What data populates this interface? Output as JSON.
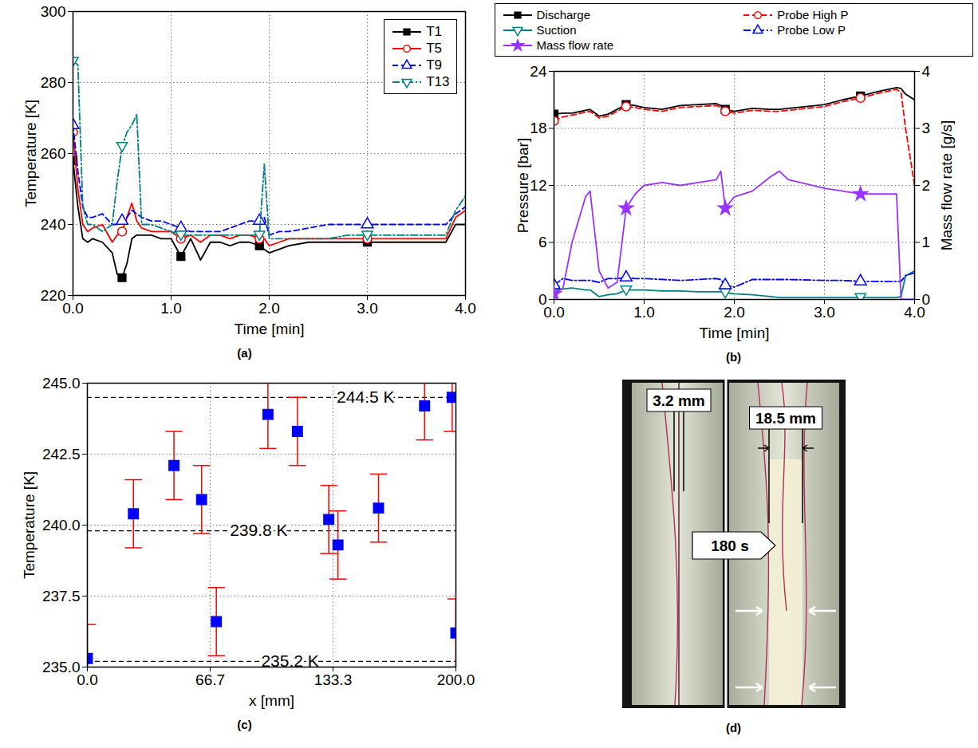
{
  "chart_data": [
    {
      "type": "line",
      "caption": "(a)",
      "xlabel": "Time [min]",
      "ylabel": "Temperature [K]",
      "xlim": [
        0,
        4
      ],
      "ylim": [
        220,
        300
      ],
      "xticks": [
        {
          "value": 0,
          "label": "0.0"
        },
        {
          "value": 1,
          "label": "1.0"
        },
        {
          "value": 2,
          "label": "2.0"
        },
        {
          "value": 3,
          "label": "3.0"
        },
        {
          "value": 4,
          "label": "4.0"
        }
      ],
      "yticks": [
        220,
        240,
        260,
        280,
        300
      ],
      "grid": true,
      "legend": "upper right",
      "x": [
        0,
        0.05,
        0.1,
        0.15,
        0.2,
        0.3,
        0.4,
        0.45,
        0.5,
        0.55,
        0.6,
        0.65,
        0.7,
        0.8,
        0.9,
        1.0,
        1.1,
        1.2,
        1.3,
        1.4,
        1.5,
        1.6,
        1.7,
        1.8,
        1.9,
        1.95,
        2.0,
        2.1,
        2.2,
        2.4,
        2.6,
        2.8,
        3.0,
        3.2,
        3.4,
        3.6,
        3.8,
        3.9,
        4.0
      ],
      "series": [
        {
          "name": "T1",
          "color": "#000000",
          "marker": "filled-square",
          "line_style": "solid",
          "values": [
            258,
            245,
            236,
            235,
            236,
            235,
            232,
            226,
            225,
            229,
            236,
            237,
            237,
            237,
            236,
            236,
            231,
            236,
            230,
            235,
            235,
            234,
            235,
            235,
            234,
            233,
            232,
            233,
            234,
            235,
            235,
            235,
            235,
            235,
            235,
            235,
            235,
            240,
            240
          ]
        },
        {
          "name": "T5",
          "color": "#ff0000",
          "marker": "open-circle",
          "line_style": "solid",
          "values": [
            266,
            250,
            240,
            238,
            239,
            240,
            235,
            237,
            238,
            242,
            246,
            241,
            239,
            238,
            238,
            238,
            236,
            237,
            235,
            237,
            237,
            236,
            237,
            237,
            236,
            236,
            234,
            235,
            236,
            236,
            236,
            236,
            236,
            236,
            236,
            236,
            236,
            242,
            244
          ]
        },
        {
          "name": "T9",
          "color": "#0000ff",
          "marker": "open-triangle",
          "line_style": "dashed",
          "values": [
            268,
            255,
            245,
            242,
            242,
            243,
            240,
            240,
            241,
            242,
            244,
            243,
            242,
            241,
            241,
            240,
            239,
            238,
            238,
            238,
            238,
            239,
            240,
            241,
            241,
            242,
            237,
            238,
            238,
            239,
            240,
            240,
            240,
            240,
            240,
            240,
            240,
            243,
            245
          ]
        },
        {
          "name": "T13",
          "color": "#008080",
          "marker": "open-triangle-down",
          "line_style": "dashdot",
          "values": [
            286,
            285,
            245,
            240,
            240,
            238,
            240,
            252,
            262,
            266,
            268,
            271,
            240,
            240,
            239,
            238,
            237,
            237,
            237,
            237,
            237,
            237,
            237,
            237,
            237,
            257,
            236,
            236,
            236,
            236,
            236,
            237,
            237,
            237,
            237,
            237,
            237,
            244,
            248
          ]
        }
      ]
    },
    {
      "type": "line",
      "caption": "(b)",
      "xlabel": "Time [min]",
      "ylabel": "Pressure [bar]",
      "y2label": "Mass flow rate [g/s]",
      "xlim": [
        0,
        4
      ],
      "ylim": [
        0,
        24
      ],
      "y2lim": [
        0,
        4
      ],
      "xticks": [
        {
          "value": 0,
          "label": "0.0"
        },
        {
          "value": 1,
          "label": "1.0"
        },
        {
          "value": 2,
          "label": "2.0"
        },
        {
          "value": 3,
          "label": "3.0"
        },
        {
          "value": 4,
          "label": "4.0"
        }
      ],
      "yticks": [
        0,
        6,
        12,
        18,
        24
      ],
      "y2ticks": [
        0,
        1,
        2,
        3,
        4
      ],
      "grid": true,
      "legend": "top",
      "x": [
        0,
        0.1,
        0.2,
        0.35,
        0.4,
        0.5,
        0.6,
        0.7,
        0.8,
        0.9,
        1.0,
        1.2,
        1.4,
        1.6,
        1.8,
        1.85,
        1.9,
        2.0,
        2.2,
        2.4,
        2.5,
        2.6,
        3.0,
        3.2,
        3.4,
        3.6,
        3.8,
        3.85,
        3.9,
        4.0
      ],
      "series": [
        {
          "name": "Discharge",
          "color": "#000000",
          "marker": "filled-square",
          "line_style": "solid",
          "values": [
            19.5,
            19.6,
            19.6,
            19.9,
            20.0,
            19.3,
            19.5,
            20.0,
            20.5,
            20.4,
            20.2,
            20.0,
            20.4,
            20.5,
            20.6,
            20.4,
            20.0,
            19.8,
            20.1,
            20.0,
            20.0,
            20.1,
            20.5,
            21.0,
            21.4,
            21.9,
            22.3,
            22.2,
            21.6,
            21.0
          ]
        },
        {
          "name": "Probe High P",
          "color": "#ff0000",
          "marker": "open-circle",
          "line_style": "dashed",
          "values": [
            18.8,
            19.2,
            19.4,
            19.7,
            19.8,
            19.1,
            19.3,
            19.8,
            20.3,
            20.2,
            20.0,
            19.8,
            20.2,
            20.3,
            20.4,
            20.2,
            19.8,
            19.6,
            19.9,
            19.8,
            19.8,
            19.9,
            20.3,
            20.8,
            21.2,
            21.7,
            22.1,
            21.8,
            18.0,
            12.0
          ]
        },
        {
          "name": "Suction",
          "color": "#008080",
          "marker": "open-triangle-down",
          "line_style": "solid",
          "values": [
            1.0,
            1.1,
            1.2,
            1.0,
            1.0,
            0.3,
            0.5,
            0.6,
            1.0,
            1.0,
            1.0,
            0.9,
            0.9,
            0.8,
            0.8,
            0.8,
            0.7,
            0.6,
            0.5,
            0.3,
            0.2,
            0.2,
            0.2,
            0.2,
            0.2,
            0.2,
            0.2,
            0.3,
            2.5,
            3.0
          ]
        },
        {
          "name": "Probe Low P",
          "color": "#0000ff",
          "marker": "open-triangle",
          "line_style": "dashdot",
          "values": [
            1.5,
            2.2,
            2.0,
            2.0,
            2.0,
            1.8,
            2.2,
            2.2,
            2.3,
            2.2,
            2.2,
            2.1,
            2.0,
            2.1,
            2.2,
            2.1,
            1.5,
            1.3,
            2.1,
            2.1,
            2.1,
            2.1,
            2.0,
            2.0,
            1.9,
            1.9,
            1.9,
            1.9,
            2.5,
            2.8
          ]
        },
        {
          "name": "Mass flow rate",
          "color": "#9933ff",
          "marker": "filled-star",
          "line_style": "solid",
          "axis": "y2",
          "values": [
            0.1,
            0.2,
            1.0,
            1.8,
            1.9,
            0.5,
            0.2,
            0.3,
            1.6,
            1.85,
            2.0,
            2.05,
            2.0,
            2.05,
            2.1,
            2.25,
            1.6,
            1.8,
            1.9,
            2.15,
            2.25,
            2.1,
            1.95,
            1.9,
            1.85,
            1.85,
            1.85,
            0.0,
            0.0,
            0.0
          ]
        }
      ]
    },
    {
      "type": "scatter",
      "caption": "(c)",
      "xlabel": "x [mm]",
      "ylabel": "Temperature [K]",
      "xlim": [
        0,
        200
      ],
      "ylim": [
        235,
        245
      ],
      "xticks": [
        {
          "value": 0,
          "label": "0.0"
        },
        {
          "value": 66.7,
          "label": "66.7"
        },
        {
          "value": 133.3,
          "label": "133.3"
        },
        {
          "value": 200,
          "label": "200.0"
        }
      ],
      "yticks": [
        {
          "value": 235,
          "label": "235.0"
        },
        {
          "value": 237.5,
          "label": "237.5"
        },
        {
          "value": 240,
          "label": "240.0"
        },
        {
          "value": 242.5,
          "label": "242.5"
        },
        {
          "value": 245,
          "label": "245.0"
        }
      ],
      "grid": true,
      "color": "#0000ff",
      "marker": "filled-square",
      "x": [
        0,
        25,
        47,
        62,
        70,
        98,
        114,
        131,
        136,
        158,
        183,
        198,
        200
      ],
      "values": [
        235.3,
        240.4,
        242.1,
        240.9,
        236.6,
        243.9,
        243.3,
        240.2,
        239.3,
        240.6,
        244.2,
        244.5,
        236.2
      ],
      "errors": [
        1.2,
        1.2,
        1.2,
        1.2,
        1.2,
        1.2,
        1.2,
        1.2,
        1.2,
        1.2,
        1.2,
        1.2,
        1.2
      ],
      "reference_lines": [
        {
          "value": 244.5,
          "label": "244.5 K"
        },
        {
          "value": 239.8,
          "label": "239.8 K"
        },
        {
          "value": 235.2,
          "label": "235.2 K"
        }
      ]
    },
    {
      "type": "photo",
      "caption": "(d)",
      "annotations": [
        "3.2 mm",
        "18.5 mm",
        "180 s"
      ]
    }
  ]
}
